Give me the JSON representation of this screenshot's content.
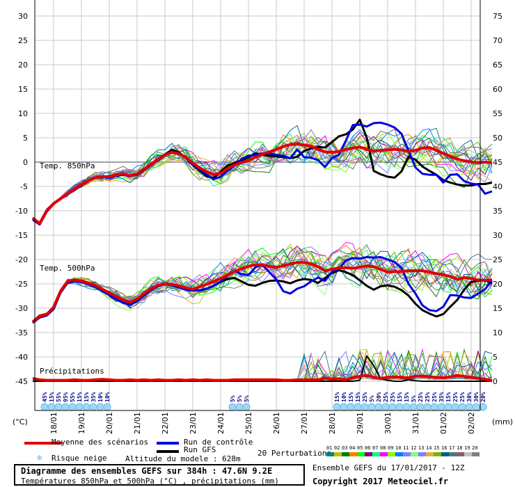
{
  "chart_data": {
    "type": "line",
    "title": "Diagramme des ensembles GEFS sur 384h : 47.6N 9.2E",
    "subtitle": "Températures 850hPa et 500hPa (°C) , précipitations (mm)",
    "left_axis": {
      "label": "(°C)",
      "range": [
        -45,
        30
      ],
      "ticks": [
        30,
        25,
        20,
        15,
        10,
        5,
        0,
        -5,
        -10,
        -15,
        -20,
        -25,
        -30,
        -35,
        -40,
        -45
      ]
    },
    "right_axis": {
      "label": "(mm)",
      "range": [
        0,
        75
      ],
      "ticks": [
        75,
        70,
        65,
        60,
        55,
        50,
        45,
        40,
        35,
        30,
        25,
        20,
        15,
        10,
        5,
        0
      ]
    },
    "x_ticks": [
      "18/01",
      "19/01",
      "20/01",
      "21/01",
      "22/01",
      "23/01",
      "24/01",
      "25/01",
      "26/01",
      "27/01",
      "28/01",
      "29/01",
      "30/01",
      "31/01",
      "01/02",
      "02/02"
    ],
    "x_start_day": 17.25,
    "step_hours": 6,
    "panel_labels": {
      "t850": "Temp. 850hPa",
      "t500": "Temp. 500hPa",
      "precip": "Précipitations"
    },
    "series": [
      {
        "name": "Moyenne des scénarios (850hPa)",
        "color": "#e00000",
        "width": 4,
        "values": [
          -11.5,
          -12.6,
          -10,
          -8.5,
          -7.5,
          -6.5,
          -5.5,
          -4.6,
          -3.8,
          -3.2,
          -3.0,
          -3.0,
          -2.6,
          -2.4,
          -2.8,
          -2.4,
          -1.5,
          -0.4,
          0.6,
          1.5,
          2.0,
          1.7,
          1.0,
          -0.2,
          -1.2,
          -2.0,
          -2.5,
          -2.3,
          -1.3,
          -0.6,
          -0.1,
          0.3,
          1.0,
          1.6,
          2.1,
          2.6,
          3.2,
          3.6,
          3.7,
          3.5,
          3.3,
          2.6,
          2.1,
          2.0,
          2.2,
          2.6,
          2.9,
          3.1,
          2.6,
          2.3,
          2.4,
          2.5,
          2.6,
          2.5,
          2.2,
          2.4,
          2.9,
          3.0,
          2.4,
          1.8,
          1.2,
          0.6,
          0.3,
          0.0,
          -0.1,
          0.0,
          -0.1
        ]
      },
      {
        "name": "Run de contrôle (850hPa)",
        "color": "#0000e0",
        "width": 3,
        "values": [
          -11.8,
          -12.8,
          -10.2,
          -8.6,
          -7.6,
          -6.6,
          -5.7,
          -4.8,
          -3.9,
          -3.2,
          -3.1,
          -3.2,
          -2.8,
          -2.6,
          -2.9,
          -2.6,
          -1.7,
          -0.6,
          0.4,
          1.4,
          2.2,
          1.8,
          0.9,
          -0.5,
          -1.6,
          -2.6,
          -3.5,
          -3.0,
          -1.8,
          -0.7,
          0.6,
          1.3,
          1.4,
          1.8,
          1.8,
          1.5,
          1.3,
          0.8,
          2.6,
          1.0,
          0.9,
          0.4,
          -1.0,
          0.8,
          1.5,
          4.4,
          7.6,
          7.7,
          7.3,
          8.0,
          8.1,
          7.7,
          7.1,
          5.8,
          2.3,
          -1.1,
          -2.4,
          -2.6,
          -2.6,
          -4.2,
          -2.6,
          -2.5,
          -3.9,
          -4.4,
          -4.6,
          -6.5,
          -6.0
        ]
      },
      {
        "name": "Run GFS (850hPa)",
        "color": "#000000",
        "width": 3,
        "values": [
          -11.8,
          -12.8,
          -10.2,
          -8.6,
          -7.6,
          -6.6,
          -5.7,
          -4.8,
          -3.9,
          -3.2,
          -3.1,
          -3.2,
          -2.8,
          -2.6,
          -2.9,
          -2.6,
          -1.7,
          -0.6,
          0.4,
          1.6,
          2.5,
          2.0,
          0.9,
          -0.6,
          -1.8,
          -2.9,
          -3.3,
          -2.0,
          -0.7,
          -0.2,
          0.4,
          1.0,
          1.8,
          1.5,
          1.3,
          1.2,
          1.0,
          0.8,
          1.1,
          2.3,
          2.8,
          3.1,
          3.0,
          4.1,
          5.3,
          5.7,
          6.7,
          8.7,
          5.0,
          -1.8,
          -2.5,
          -3.0,
          -3.2,
          -1.9,
          1.1,
          0.5,
          -0.9,
          -1.8,
          -2.6,
          -3.7,
          -4.2,
          -4.6,
          -4.8,
          -4.8,
          -4.5,
          -4.5,
          -4.2
        ]
      },
      {
        "name": "Moyenne des scénarios (500hPa)",
        "color": "#e00000",
        "width": 4,
        "values": [
          -32.8,
          -31.6,
          -31.3,
          -29.8,
          -26.5,
          -24.5,
          -24.2,
          -24.4,
          -24.8,
          -25.3,
          -26.1,
          -26.8,
          -27.6,
          -28.3,
          -28.8,
          -28.1,
          -27.0,
          -26.0,
          -25.3,
          -25.0,
          -25.1,
          -25.4,
          -25.8,
          -26.1,
          -25.6,
          -25.1,
          -24.5,
          -23.9,
          -23.2,
          -22.5,
          -21.9,
          -21.4,
          -21.1,
          -21.1,
          -21.4,
          -21.6,
          -21.3,
          -20.9,
          -20.6,
          -20.6,
          -20.9,
          -21.5,
          -22.3,
          -22.0,
          -21.7,
          -21.7,
          -21.8,
          -21.6,
          -21.3,
          -21.5,
          -22.0,
          -22.6,
          -22.5,
          -22.5,
          -22.3,
          -22.3,
          -22.3,
          -22.6,
          -22.9,
          -23.1,
          -23.5,
          -24.1,
          -23.7,
          -23.9,
          -24.2,
          -24.3,
          -24.2
        ]
      },
      {
        "name": "Run de contrôle (500hPa)",
        "color": "#0000e0",
        "width": 3,
        "values": [
          -33.0,
          -31.9,
          -31.5,
          -30.2,
          -26.8,
          -24.8,
          -24.5,
          -24.6,
          -25.1,
          -25.6,
          -26.5,
          -27.3,
          -28.2,
          -28.9,
          -29.3,
          -28.5,
          -27.4,
          -26.3,
          -25.5,
          -25.1,
          -25.3,
          -25.7,
          -26.2,
          -26.4,
          -26.3,
          -26.0,
          -25.4,
          -24.5,
          -23.2,
          -22.4,
          -23.0,
          -23.2,
          -21.6,
          -21.1,
          -22.6,
          -24.1,
          -26.5,
          -27.0,
          -26.0,
          -25.5,
          -24.5,
          -23.7,
          -24.4,
          -22.5,
          -21.9,
          -20.2,
          -19.7,
          -19.8,
          -19.5,
          -19.6,
          -19.5,
          -20.0,
          -20.5,
          -21.8,
          -25.0,
          -27.0,
          -29.4,
          -30.4,
          -30.6,
          -29.7,
          -27.3,
          -27.4,
          -27.8,
          -27.9,
          -27.0,
          -26.1,
          -24.3
        ]
      },
      {
        "name": "Run GFS (500hPa)",
        "color": "#000000",
        "width": 3,
        "values": [
          -33.0,
          -31.9,
          -31.5,
          -30.2,
          -26.8,
          -24.8,
          -24.5,
          -24.6,
          -25.1,
          -25.6,
          -26.5,
          -27.3,
          -28.2,
          -28.9,
          -29.3,
          -28.5,
          -27.4,
          -26.3,
          -25.5,
          -25.1,
          -25.3,
          -25.7,
          -26.2,
          -26.4,
          -26.3,
          -26.0,
          -25.4,
          -24.6,
          -24.0,
          -23.8,
          -24.5,
          -25.2,
          -25.4,
          -24.8,
          -24.4,
          -24.3,
          -24.5,
          -24.9,
          -24.3,
          -24.0,
          -24.2,
          -24.8,
          -23.8,
          -22.8,
          -22.2,
          -22.6,
          -23.2,
          -24.3,
          -25.4,
          -26.2,
          -25.5,
          -25.3,
          -25.6,
          -26.3,
          -27.4,
          -29.1,
          -30.4,
          -31.1,
          -31.7,
          -31.2,
          -29.7,
          -28.3,
          -26.2,
          -24.6,
          -24.4,
          -24.2,
          -25.0
        ]
      },
      {
        "name": "Moyenne des scénarios (précipitations)",
        "color": "#e00000",
        "width": 4,
        "axis": "right",
        "values": [
          0.6,
          0.3,
          0.2,
          0.2,
          0.2,
          0.2,
          0.3,
          0.2,
          0.2,
          0.3,
          0.4,
          0.3,
          0.2,
          0.2,
          0.3,
          0.2,
          0.3,
          0.2,
          0.3,
          0.2,
          0.2,
          0.3,
          0.2,
          0.3,
          0.2,
          0.3,
          0.2,
          0.2,
          0.2,
          0.3,
          0.3,
          0.3,
          0.3,
          0.3,
          0.3,
          0.3,
          0.2,
          0.2,
          0.3,
          0.3,
          0.3,
          0.3,
          0.6,
          0.4,
          0.5,
          0.3,
          0.7,
          1.0,
          1.2,
          0.8,
          0.6,
          0.8,
          0.9,
          0.8,
          0.7,
          1.0,
          1.1,
          0.9,
          0.8,
          0.7,
          0.9,
          1.2,
          1.0,
          0.8,
          0.6,
          0.4,
          0.1
        ]
      },
      {
        "name": "Run GFS (précipitations)",
        "color": "#000000",
        "width": 2,
        "axis": "right",
        "values": [
          0,
          0,
          0,
          0,
          0,
          0,
          0,
          0,
          0,
          0,
          0,
          0,
          0,
          0,
          0,
          0,
          0,
          0,
          0,
          0,
          0,
          0,
          0,
          0,
          0,
          0,
          0,
          0,
          0,
          0,
          0,
          0,
          0,
          0,
          0,
          0,
          0,
          0,
          0,
          0,
          0,
          0,
          0,
          0,
          0,
          0,
          0,
          0.2,
          5.2,
          3.2,
          0.5,
          0.2,
          0,
          0,
          0.3,
          0.1,
          0,
          0,
          0,
          0,
          0,
          0,
          0,
          0,
          0,
          0,
          0
        ]
      }
    ],
    "snow_risk": [
      {
        "day_index": 0,
        "labels": [
          "45%",
          "15%",
          "55%",
          "95%",
          "55%",
          "15%",
          "15%",
          "35%",
          "10%",
          "10%"
        ]
      },
      {
        "day_index": 27,
        "labels": [
          "5%",
          "5%",
          "5%"
        ]
      },
      {
        "day_index": 42,
        "labels": [
          "15%",
          "10%",
          "15%",
          "15%",
          "25%",
          "5%",
          "20%",
          "25%",
          "25%",
          "15%",
          "15%",
          "5%",
          "25%",
          "25%",
          "25%",
          "35%",
          "15%",
          "25%",
          "25%",
          "30%",
          "30%",
          "20%"
        ]
      }
    ],
    "grid": true
  },
  "legend": {
    "mean_label": "Moyenne des scénarios",
    "mean_color": "#e00000",
    "control_label": "Run de contrôle",
    "control_color": "#0000e0",
    "gfs_label": "Run GFS",
    "gfs_color": "#000000",
    "snow_label": "Risque neige",
    "altitude_label": "Altitude du modele : 628m",
    "perturbations_label": "20 Perturbations",
    "perturbations": [
      {
        "num": "01",
        "color": "#008080"
      },
      {
        "num": "02",
        "color": "#c0c000"
      },
      {
        "num": "03",
        "color": "#008000"
      },
      {
        "num": "04",
        "color": "#ff8000"
      },
      {
        "num": "05",
        "color": "#00ff00"
      },
      {
        "num": "06",
        "color": "#800080"
      },
      {
        "num": "07",
        "color": "#00ff80"
      },
      {
        "num": "08",
        "color": "#ff00ff"
      },
      {
        "num": "09",
        "color": "#80ff00"
      },
      {
        "num": "10",
        "color": "#0080ff"
      },
      {
        "num": "11",
        "color": "#8080ff"
      },
      {
        "num": "12",
        "color": "#80ff80"
      },
      {
        "num": "13",
        "color": "#8080ff"
      },
      {
        "num": "14",
        "color": "#e0b040"
      },
      {
        "num": "15",
        "color": "#80b000"
      },
      {
        "num": "16",
        "color": "#006080"
      },
      {
        "num": "17",
        "color": "#507880"
      },
      {
        "num": "18",
        "color": "#806070"
      },
      {
        "num": "19",
        "color": "#c0c0c0"
      },
      {
        "num": "20",
        "color": "#808080"
      }
    ]
  },
  "footer": {
    "run_info": "Ensemble GEFS du 17/01/2017 - 12Z",
    "copyright": "Copyright 2017 Meteociel.fr"
  }
}
